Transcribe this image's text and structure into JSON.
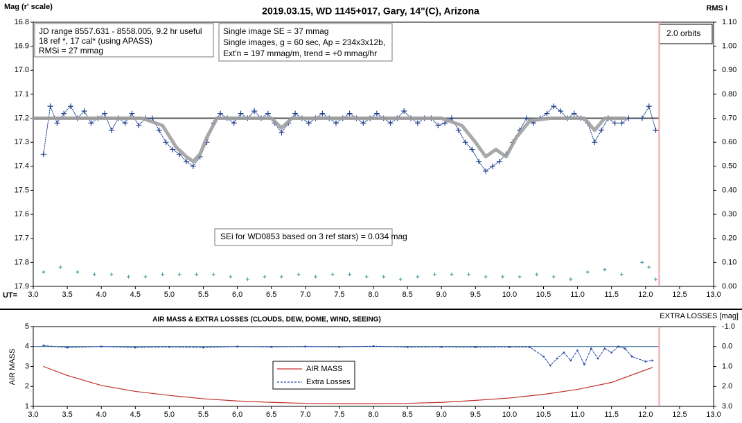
{
  "chart_data": [
    {
      "type": "scatter",
      "title": "2019.03.15, WD 1145+017, Gary, 14\"(C), Arizona",
      "ylabel": "Mag (r' scale)",
      "y2label": "RMS i",
      "xlabel": "UT=",
      "annotations": [
        "JD range 8557.631 - 8558.005, 9.2 hr useful",
        "18 ref *, 17 cal* (using APASS)",
        "RMSi = 27 mmag",
        "Single image SE = 37 mmag",
        "Single images, g = 60 sec, Ap = 234x3x12b,",
        "Ext'n = 197 mmag/m, trend = +0 mmag/hr",
        "SEi for WD0853 based on 3 ref stars) = 0.034 mag",
        "2.0 orbits"
      ],
      "xlim": [
        3.0,
        13.0
      ],
      "xticks": [
        {
          "value": 3,
          "label": "3.0"
        },
        3.5,
        {
          "value": 4,
          "label": "4.0"
        },
        4.5,
        {
          "value": 5,
          "label": "5.0"
        },
        5.5,
        {
          "value": 6,
          "label": "6.0"
        },
        6.5,
        {
          "value": 7,
          "label": "7.0"
        },
        7.5,
        {
          "value": 8,
          "label": "8.0"
        },
        8.5,
        {
          "value": 9,
          "label": "9.0"
        },
        9.5,
        {
          "value": 10,
          "label": "10.0"
        },
        10.5,
        {
          "value": 11,
          "label": "11.0"
        },
        11.5,
        {
          "value": 12,
          "label": "12.0"
        },
        12.5,
        {
          "value": 13,
          "label": "13.0"
        }
      ],
      "ylim": [
        17.9,
        16.8
      ],
      "yticks": [
        16.8,
        16.9,
        {
          "value": 17,
          "label": "17.0"
        },
        17.1,
        17.2,
        17.3,
        17.4,
        17.5,
        17.6,
        17.7,
        17.8,
        17.9
      ],
      "y2lim": [
        0,
        1.1
      ],
      "y2ticks": [
        {
          "value": 0,
          "label": "0.00"
        },
        {
          "value": 0.1,
          "label": "0.10"
        },
        {
          "value": 0.2,
          "label": "0.20"
        },
        {
          "value": 0.3,
          "label": "0.30"
        },
        {
          "value": 0.4,
          "label": "0.40"
        },
        {
          "value": 0.5,
          "label": "0.50"
        },
        {
          "value": 0.6,
          "label": "0.60"
        },
        {
          "value": 0.7,
          "label": "0.70"
        },
        {
          "value": 0.8,
          "label": "0.80"
        },
        {
          "value": 0.9,
          "label": "0.90"
        },
        {
          "value": 1,
          "label": "1.00"
        },
        {
          "value": 1.1,
          "label": "1.10"
        }
      ],
      "hline": 17.2,
      "hline_color": "#555555",
      "vline": 12.2,
      "vline_color": "#f4a0a8",
      "series": [
        {
          "color": "#1f3f8f",
          "mode": "markers+dotted",
          "x": [
            3.15,
            3.25,
            3.35,
            3.45,
            3.55,
            3.65,
            3.75,
            3.85,
            3.95,
            4.05,
            4.15,
            4.25,
            4.35,
            4.45,
            4.55,
            4.65,
            4.75,
            4.85,
            4.95,
            5.05,
            5.15,
            5.25,
            5.35,
            5.45,
            5.55,
            5.65,
            5.75,
            5.85,
            5.95,
            6.05,
            6.15,
            6.25,
            6.35,
            6.45,
            6.55,
            6.65,
            6.75,
            6.85,
            6.95,
            7.05,
            7.15,
            7.25,
            7.35,
            7.45,
            7.55,
            7.65,
            7.75,
            7.85,
            7.95,
            8.05,
            8.15,
            8.25,
            8.35,
            8.45,
            8.55,
            8.65,
            8.75,
            8.85,
            8.95,
            9.05,
            9.15,
            9.25,
            9.35,
            9.45,
            9.55,
            9.65,
            9.75,
            9.85,
            9.95,
            10.05,
            10.15,
            10.25,
            10.35,
            10.45,
            10.55,
            10.65,
            10.75,
            10.85,
            10.95,
            11.05,
            11.15,
            11.25,
            11.35,
            11.45,
            11.55,
            11.65,
            11.75,
            11.95,
            12.05,
            12.15
          ],
          "values": [
            17.35,
            17.15,
            17.22,
            17.18,
            17.15,
            17.2,
            17.17,
            17.22,
            17.2,
            17.18,
            17.25,
            17.2,
            17.22,
            17.18,
            17.23,
            17.2,
            17.2,
            17.25,
            17.3,
            17.33,
            17.35,
            17.38,
            17.4,
            17.36,
            17.3,
            17.22,
            17.18,
            17.2,
            17.22,
            17.18,
            17.2,
            17.17,
            17.2,
            17.18,
            17.22,
            17.26,
            17.22,
            17.18,
            17.2,
            17.22,
            17.2,
            17.18,
            17.2,
            17.22,
            17.2,
            17.18,
            17.2,
            17.22,
            17.2,
            17.18,
            17.2,
            17.22,
            17.2,
            17.17,
            17.2,
            17.22,
            17.2,
            17.2,
            17.23,
            17.22,
            17.2,
            17.25,
            17.3,
            17.33,
            17.38,
            17.42,
            17.4,
            17.38,
            17.35,
            17.3,
            17.25,
            17.2,
            17.22,
            17.2,
            17.18,
            17.15,
            17.17,
            17.2,
            17.18,
            17.2,
            17.22,
            17.3,
            17.25,
            17.2,
            17.22,
            17.22,
            17.2,
            17.2,
            17.15,
            17.25
          ]
        },
        {
          "color": "#a0a0a0",
          "mode": "thick-line",
          "x": [
            3.0,
            4.6,
            4.9,
            5.1,
            5.25,
            5.35,
            5.45,
            5.55,
            5.7,
            6.5,
            6.65,
            6.8,
            9.0,
            9.3,
            9.5,
            9.65,
            9.8,
            9.95,
            10.1,
            10.3,
            10.6,
            11.1,
            11.25,
            11.4,
            11.7
          ],
          "values": [
            17.2,
            17.2,
            17.23,
            17.32,
            17.36,
            17.38,
            17.35,
            17.28,
            17.2,
            17.2,
            17.24,
            17.2,
            17.2,
            17.23,
            17.3,
            17.36,
            17.33,
            17.36,
            17.28,
            17.21,
            17.2,
            17.2,
            17.25,
            17.2,
            17.2
          ]
        },
        {
          "color": "#4aa3a8",
          "mode": "small-markers",
          "axis": "y2",
          "x": [
            3.15,
            3.4,
            3.65,
            3.9,
            4.15,
            4.4,
            4.65,
            4.9,
            5.15,
            5.4,
            5.65,
            5.9,
            6.15,
            6.4,
            6.65,
            6.9,
            7.15,
            7.4,
            7.65,
            7.9,
            8.15,
            8.4,
            8.65,
            8.9,
            9.15,
            9.4,
            9.65,
            9.9,
            10.15,
            10.4,
            10.65,
            10.9,
            11.15,
            11.4,
            11.65,
            11.95,
            12.05,
            12.15
          ],
          "values": [
            0.06,
            0.08,
            0.06,
            0.05,
            0.05,
            0.04,
            0.04,
            0.05,
            0.05,
            0.05,
            0.05,
            0.04,
            0.03,
            0.04,
            0.04,
            0.05,
            0.04,
            0.05,
            0.05,
            0.04,
            0.04,
            0.03,
            0.04,
            0.05,
            0.05,
            0.05,
            0.04,
            0.04,
            0.04,
            0.05,
            0.04,
            0.03,
            0.06,
            0.07,
            0.05,
            0.1,
            0.08,
            0.03
          ]
        }
      ]
    },
    {
      "type": "line",
      "title": "AIR MASS & EXTRA LOSSES (CLOUDS, DEW, DOME, WIND, SEEING)",
      "ylabel": "AIR MASS",
      "y2label": "EXTRA LOSSES [mag]",
      "xlim": [
        3.0,
        13.0
      ],
      "xticks": [
        {
          "value": 3,
          "label": "3.0"
        },
        3.5,
        {
          "value": 4,
          "label": "4.0"
        },
        4.5,
        {
          "value": 5,
          "label": "5.0"
        },
        5.5,
        {
          "value": 6,
          "label": "6.0"
        },
        6.5,
        {
          "value": 7,
          "label": "7.0"
        },
        7.5,
        {
          "value": 8,
          "label": "8.0"
        },
        8.5,
        {
          "value": 9,
          "label": "9.0"
        },
        9.5,
        {
          "value": 10,
          "label": "10.0"
        },
        10.5,
        {
          "value": 11,
          "label": "11.0"
        },
        11.5,
        {
          "value": 12,
          "label": "12.0"
        },
        12.5,
        {
          "value": 13,
          "label": "13.0"
        }
      ],
      "ylim": [
        1,
        5
      ],
      "yticks": [
        1,
        2,
        3,
        4,
        5
      ],
      "y2lim": [
        3.0,
        -1.0
      ],
      "y2ticks": [
        {
          "value": -1,
          "label": "-1.0"
        },
        {
          "value": 0,
          "label": "0.0"
        },
        {
          "value": 1,
          "label": "1.0"
        },
        {
          "value": 2,
          "label": "2.0"
        },
        {
          "value": 3,
          "label": "3.0"
        }
      ],
      "hline": 4,
      "hline_color": "#1f5f8f",
      "vline": 12.2,
      "vline_color": "#f4a0a8",
      "series": [
        {
          "name": "AIR MASS",
          "color": "#c0302a",
          "mode": "line",
          "x": [
            3.15,
            3.5,
            4.0,
            4.5,
            5.0,
            5.5,
            6.0,
            6.5,
            7.0,
            7.5,
            8.0,
            8.5,
            9.0,
            9.5,
            10.0,
            10.5,
            11.0,
            11.5,
            12.1
          ],
          "values": [
            3.0,
            2.55,
            2.05,
            1.75,
            1.55,
            1.38,
            1.27,
            1.2,
            1.15,
            1.13,
            1.13,
            1.15,
            1.2,
            1.3,
            1.42,
            1.6,
            1.85,
            2.2,
            2.95
          ]
        },
        {
          "name": "Extra Losses",
          "color": "#1f3f9f",
          "mode": "markers+dashed",
          "axis": "y2",
          "x": [
            3.15,
            3.5,
            4.0,
            4.5,
            5.0,
            5.5,
            6.0,
            6.5,
            7.0,
            7.5,
            8.0,
            8.5,
            9.0,
            9.5,
            10.0,
            10.3,
            10.5,
            10.6,
            10.7,
            10.8,
            10.9,
            11.0,
            11.1,
            11.2,
            11.3,
            11.4,
            11.5,
            11.6,
            11.7,
            11.8,
            12.0,
            12.1
          ],
          "values": [
            -0.05,
            0.05,
            0.0,
            0.05,
            0.02,
            0.05,
            0.0,
            0.02,
            0.0,
            0.02,
            -0.02,
            0.03,
            0.02,
            0.03,
            0.02,
            0.03,
            0.5,
            0.95,
            0.6,
            0.3,
            0.7,
            0.2,
            0.9,
            0.1,
            0.6,
            0.1,
            0.3,
            0.0,
            0.1,
            0.5,
            0.75,
            0.7
          ]
        }
      ]
    }
  ]
}
